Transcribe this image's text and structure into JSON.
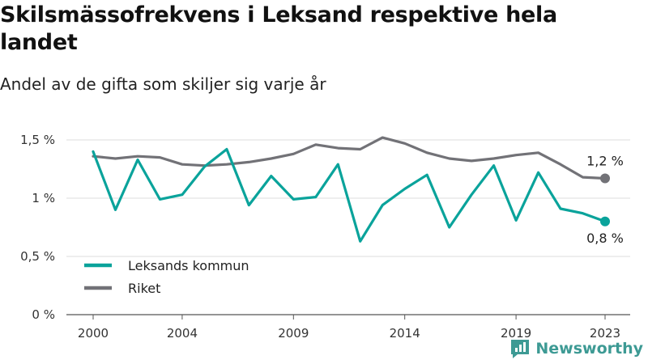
{
  "title": "Skilsmässofrekvens i Leksand respektive hela landet",
  "subtitle": "Andel av de gifta som skiljer sig varje år",
  "brand": {
    "name": "Newsworthy",
    "icon": "newsworthy-logo-icon",
    "color": "#3d9a94"
  },
  "chart_data": {
    "type": "line",
    "x": [
      2000,
      2001,
      2002,
      2003,
      2004,
      2005,
      2006,
      2007,
      2008,
      2009,
      2010,
      2011,
      2012,
      2013,
      2014,
      2015,
      2016,
      2017,
      2018,
      2019,
      2020,
      2021,
      2022,
      2023
    ],
    "series": [
      {
        "name": "Leksands kommun",
        "color": "#0aa39b",
        "values": [
          1.4,
          0.9,
          1.33,
          0.99,
          1.03,
          1.27,
          1.42,
          0.94,
          1.19,
          0.99,
          1.01,
          1.29,
          0.63,
          0.94,
          1.08,
          1.2,
          0.75,
          1.03,
          1.28,
          0.81,
          1.22,
          0.91,
          0.87,
          0.8
        ],
        "end_label": "0,8 %"
      },
      {
        "name": "Riket",
        "color": "#727277",
        "values": [
          1.36,
          1.34,
          1.36,
          1.35,
          1.29,
          1.28,
          1.29,
          1.31,
          1.34,
          1.38,
          1.46,
          1.43,
          1.42,
          1.52,
          1.47,
          1.39,
          1.34,
          1.32,
          1.34,
          1.37,
          1.39,
          1.29,
          1.18,
          1.17
        ],
        "end_label": "1,2 %"
      }
    ],
    "xticks": [
      2000,
      2004,
      2009,
      2014,
      2019,
      2023
    ],
    "xtick_labels": [
      "2000",
      "2004",
      "2009",
      "2014",
      "2019",
      "2023"
    ],
    "yticks": [
      0,
      0.5,
      1,
      1.5
    ],
    "ytick_labels": [
      "0 %",
      "0,5 %",
      "1 %",
      "1,5 %"
    ],
    "ylim": [
      0,
      1.5
    ],
    "xlim": [
      2000,
      2023
    ],
    "grid": true,
    "legend_position": "bottom-left"
  }
}
